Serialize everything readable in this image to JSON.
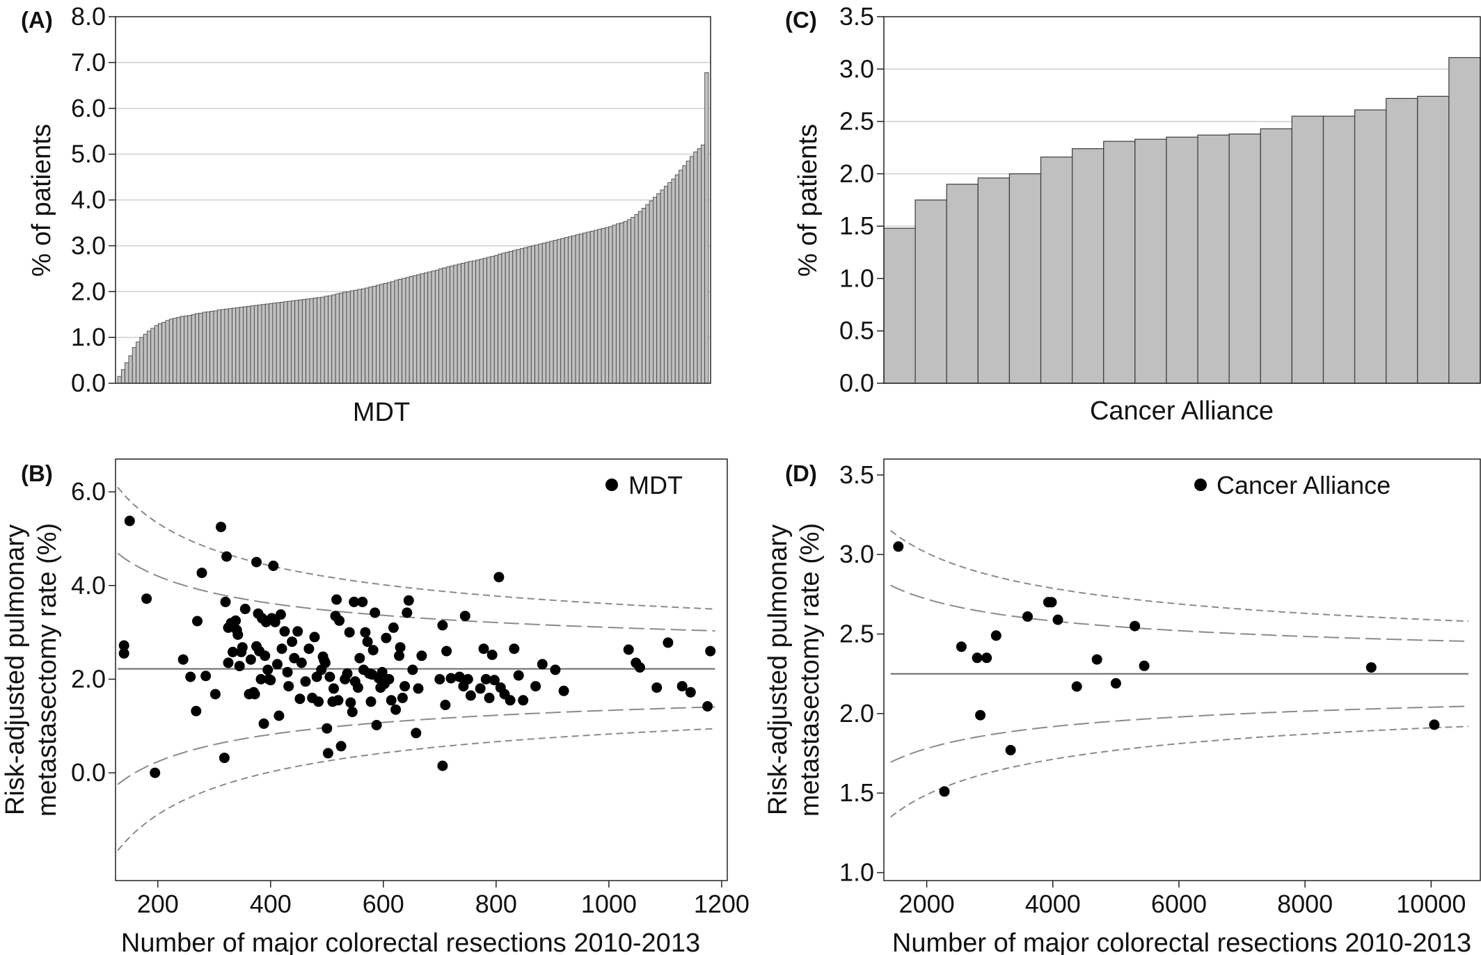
{
  "panels": [
    {
      "label": "(A)",
      "ylabel": "% of patients",
      "xlabel": "MDT"
    },
    {
      "label": "(B)",
      "ylabel_line1": "Risk-adjusted pulmonary",
      "ylabel_line2": "metastasectomy rate (%)",
      "xlabel": "Number of major colorectal resections 2010-2013",
      "legend": "MDT"
    },
    {
      "label": "(C)",
      "ylabel": "% of patients",
      "xlabel": "Cancer Alliance"
    },
    {
      "label": "(D)",
      "ylabel_line1": "Risk-adjusted pulmonary",
      "ylabel_line2": "metastasectomy rate (%)",
      "xlabel": "Number of major colorectal resections 2010-2013",
      "legend": "Cancer Alliance"
    }
  ],
  "colors": {
    "bar_fill": "#c0c0c0",
    "bar_stroke": "#3a3a3a",
    "grid": "#cfcfcf",
    "point": "#000000",
    "limit_line": "#8a8a8a",
    "mean_line": "#666666"
  },
  "chart_data": [
    {
      "panel": "(A)",
      "type": "bar",
      "xlabel": "MDT",
      "ylabel": "% of patients",
      "ylim": [
        0,
        8
      ],
      "yticks": [
        "0.0",
        "1.0",
        "2.0",
        "3.0",
        "4.0",
        "5.0",
        "6.0",
        "7.0",
        "8.0"
      ],
      "grid": true,
      "n_bars": 160,
      "values": [
        0.15,
        0.3,
        0.45,
        0.6,
        0.78,
        0.9,
        1.0,
        1.07,
        1.14,
        1.2,
        1.26,
        1.3,
        1.33,
        1.37,
        1.4,
        1.42,
        1.44,
        1.46,
        1.47,
        1.48,
        1.5,
        1.52,
        1.53,
        1.55,
        1.56,
        1.57,
        1.58,
        1.6,
        1.61,
        1.62,
        1.63,
        1.64,
        1.65,
        1.66,
        1.67,
        1.68,
        1.69,
        1.7,
        1.71,
        1.72,
        1.73,
        1.74,
        1.75,
        1.76,
        1.77,
        1.78,
        1.79,
        1.8,
        1.81,
        1.82,
        1.83,
        1.84,
        1.85,
        1.86,
        1.87,
        1.88,
        1.9,
        1.91,
        1.93,
        1.95,
        1.97,
        1.99,
        2.0,
        2.02,
        2.03,
        2.05,
        2.06,
        2.08,
        2.1,
        2.12,
        2.14,
        2.16,
        2.18,
        2.2,
        2.22,
        2.25,
        2.27,
        2.29,
        2.31,
        2.33,
        2.35,
        2.37,
        2.39,
        2.41,
        2.43,
        2.45,
        2.47,
        2.5,
        2.52,
        2.54,
        2.56,
        2.58,
        2.6,
        2.62,
        2.64,
        2.66,
        2.67,
        2.69,
        2.71,
        2.73,
        2.75,
        2.77,
        2.79,
        2.82,
        2.84,
        2.86,
        2.88,
        2.9,
        2.92,
        2.94,
        2.96,
        2.98,
        3.0,
        3.02,
        3.04,
        3.06,
        3.08,
        3.1,
        3.12,
        3.14,
        3.16,
        3.18,
        3.2,
        3.22,
        3.24,
        3.26,
        3.28,
        3.3,
        3.32,
        3.34,
        3.36,
        3.38,
        3.4,
        3.42,
        3.45,
        3.48,
        3.5,
        3.53,
        3.57,
        3.62,
        3.68,
        3.75,
        3.82,
        3.9,
        3.98,
        4.06,
        4.14,
        4.22,
        4.3,
        4.38,
        4.46,
        4.55,
        4.65,
        4.75,
        4.85,
        4.95,
        5.05,
        5.12,
        5.2,
        6.78
      ]
    },
    {
      "panel": "(B)",
      "type": "scatter",
      "xlabel": "Number of major colorectal resections 2010-2013",
      "ylabel": "Risk-adjusted pulmonary metastasectomy rate (%)",
      "xlim": [
        125,
        1210
      ],
      "ylim": [
        -2.3,
        6.7
      ],
      "xticks": [
        "200",
        "400",
        "600",
        "800",
        "1000",
        "1200"
      ],
      "yticks": [
        "0.0",
        "2.0",
        "4.0",
        "6.0"
      ],
      "legend": "MDT",
      "legend_position": "top-right",
      "mean": 2.22,
      "points": [
        [
          140,
          2.55
        ],
        [
          140,
          2.72
        ],
        [
          150,
          5.38
        ],
        [
          180,
          3.72
        ],
        [
          195,
          0.0
        ],
        [
          245,
          2.42
        ],
        [
          258,
          2.05
        ],
        [
          268,
          1.32
        ],
        [
          270,
          3.24
        ],
        [
          278,
          4.27
        ],
        [
          285,
          2.07
        ],
        [
          302,
          1.68
        ],
        [
          312,
          5.25
        ],
        [
          318,
          0.32
        ],
        [
          320,
          3.65
        ],
        [
          322,
          4.62
        ],
        [
          325,
          2.35
        ],
        [
          325,
          3.1
        ],
        [
          330,
          3.2
        ],
        [
          333,
          2.58
        ],
        [
          338,
          3.25
        ],
        [
          340,
          3.05
        ],
        [
          342,
          2.95
        ],
        [
          345,
          2.28
        ],
        [
          348,
          2.58
        ],
        [
          350,
          2.68
        ],
        [
          355,
          3.5
        ],
        [
          362,
          1.68
        ],
        [
          365,
          2.42
        ],
        [
          370,
          1.72
        ],
        [
          372,
          1.68
        ],
        [
          375,
          4.5
        ],
        [
          375,
          2.7
        ],
        [
          378,
          3.4
        ],
        [
          380,
          2.6
        ],
        [
          383,
          2.0
        ],
        [
          385,
          3.3
        ],
        [
          388,
          1.05
        ],
        [
          390,
          2.5
        ],
        [
          392,
          3.22
        ],
        [
          395,
          2.2
        ],
        [
          397,
          2.0
        ],
        [
          400,
          1.98
        ],
        [
          402,
          3.3
        ],
        [
          405,
          4.42
        ],
        [
          408,
          3.22
        ],
        [
          412,
          2.32
        ],
        [
          415,
          1.22
        ],
        [
          418,
          3.38
        ],
        [
          420,
          2.65
        ],
        [
          425,
          3.02
        ],
        [
          430,
          2.15
        ],
        [
          432,
          1.85
        ],
        [
          438,
          2.8
        ],
        [
          442,
          2.45
        ],
        [
          448,
          3.02
        ],
        [
          452,
          1.58
        ],
        [
          455,
          2.35
        ],
        [
          462,
          1.95
        ],
        [
          468,
          2.65
        ],
        [
          474,
          1.6
        ],
        [
          478,
          2.9
        ],
        [
          482,
          2.05
        ],
        [
          485,
          1.52
        ],
        [
          490,
          2.2
        ],
        [
          493,
          2.48
        ],
        [
          495,
          2.4
        ],
        [
          497,
          2.35
        ],
        [
          500,
          0.95
        ],
        [
          502,
          0.42
        ],
        [
          505,
          2.05
        ],
        [
          510,
          1.52
        ],
        [
          512,
          1.8
        ],
        [
          515,
          3.35
        ],
        [
          517,
          3.7
        ],
        [
          520,
          1.55
        ],
        [
          522,
          3.25
        ],
        [
          525,
          0.57
        ],
        [
          532,
          2.0
        ],
        [
          536,
          2.12
        ],
        [
          540,
          3.0
        ],
        [
          542,
          1.5
        ],
        [
          545,
          1.3
        ],
        [
          548,
          3.65
        ],
        [
          550,
          1.95
        ],
        [
          555,
          1.82
        ],
        [
          558,
          2.45
        ],
        [
          563,
          3.65
        ],
        [
          565,
          2.2
        ],
        [
          568,
          3.0
        ],
        [
          572,
          2.8
        ],
        [
          575,
          2.12
        ],
        [
          578,
          1.52
        ],
        [
          580,
          2.1
        ],
        [
          582,
          2.62
        ],
        [
          585,
          3.42
        ],
        [
          588,
          1.02
        ],
        [
          592,
          2.02
        ],
        [
          595,
          1.82
        ],
        [
          598,
          2.15
        ],
        [
          602,
          1.9
        ],
        [
          605,
          2.88
        ],
        [
          610,
          2.0
        ],
        [
          614,
          1.55
        ],
        [
          618,
          3.1
        ],
        [
          622,
          1.35
        ],
        [
          628,
          2.5
        ],
        [
          630,
          2.68
        ],
        [
          634,
          1.6
        ],
        [
          638,
          1.85
        ],
        [
          642,
          3.42
        ],
        [
          645,
          3.68
        ],
        [
          652,
          2.2
        ],
        [
          658,
          0.85
        ],
        [
          662,
          1.8
        ],
        [
          668,
          2.5
        ],
        [
          700,
          2.0
        ],
        [
          705,
          3.15
        ],
        [
          705,
          0.15
        ],
        [
          710,
          1.45
        ],
        [
          712,
          2.6
        ],
        [
          720,
          2.02
        ],
        [
          735,
          2.05
        ],
        [
          742,
          1.85
        ],
        [
          745,
          3.35
        ],
        [
          750,
          2.0
        ],
        [
          755,
          1.65
        ],
        [
          772,
          1.8
        ],
        [
          778,
          2.65
        ],
        [
          782,
          2.0
        ],
        [
          788,
          1.6
        ],
        [
          793,
          2.52
        ],
        [
          797,
          1.98
        ],
        [
          805,
          4.18
        ],
        [
          808,
          1.82
        ],
        [
          815,
          1.68
        ],
        [
          825,
          1.55
        ],
        [
          832,
          2.65
        ],
        [
          840,
          2.08
        ],
        [
          848,
          1.55
        ],
        [
          870,
          1.85
        ],
        [
          882,
          2.32
        ],
        [
          905,
          2.2
        ],
        [
          920,
          1.75
        ],
        [
          1035,
          2.63
        ],
        [
          1048,
          2.35
        ],
        [
          1055,
          2.25
        ],
        [
          1085,
          1.82
        ],
        [
          1105,
          2.78
        ],
        [
          1130,
          1.85
        ],
        [
          1145,
          1.72
        ],
        [
          1175,
          1.42
        ],
        [
          1180,
          2.6
        ]
      ]
    },
    {
      "panel": "(C)",
      "type": "bar",
      "xlabel": "Cancer Alliance",
      "ylabel": "% of patients",
      "ylim": [
        0,
        3.5
      ],
      "yticks": [
        "0.0",
        "0.5",
        "1.0",
        "1.5",
        "2.0",
        "2.5",
        "3.0",
        "3.5"
      ],
      "grid": true,
      "values": [
        1.48,
        1.75,
        1.9,
        1.96,
        2.0,
        2.16,
        2.24,
        2.31,
        2.33,
        2.35,
        2.37,
        2.38,
        2.43,
        2.55,
        2.55,
        2.61,
        2.72,
        2.74,
        3.11
      ]
    },
    {
      "panel": "(D)",
      "type": "scatter",
      "xlabel": "Number of major colorectal resections 2010-2013",
      "ylabel": "Risk-adjusted pulmonary metastasectomy rate (%)",
      "xlim": [
        1320,
        10780
      ],
      "ylim": [
        0.95,
        3.6
      ],
      "xticks": [
        "2000",
        "4000",
        "6000",
        "8000",
        "10000"
      ],
      "yticks": [
        "1.0",
        "1.5",
        "2.0",
        "2.5",
        "3.0",
        "3.5"
      ],
      "legend": "Cancer Alliance",
      "legend_position": "top-right",
      "mean": 2.25,
      "points": [
        [
          1550,
          3.05
        ],
        [
          2280,
          1.51
        ],
        [
          2550,
          2.42
        ],
        [
          2800,
          2.35
        ],
        [
          2850,
          1.99
        ],
        [
          2950,
          2.35
        ],
        [
          3100,
          2.49
        ],
        [
          3330,
          1.77
        ],
        [
          3600,
          2.61
        ],
        [
          3930,
          2.7
        ],
        [
          3980,
          2.7
        ],
        [
          4080,
          2.59
        ],
        [
          4380,
          2.17
        ],
        [
          4700,
          2.34
        ],
        [
          5000,
          2.19
        ],
        [
          5300,
          2.55
        ],
        [
          5450,
          2.3
        ],
        [
          9050,
          2.29
        ],
        [
          10050,
          1.93
        ]
      ]
    }
  ]
}
